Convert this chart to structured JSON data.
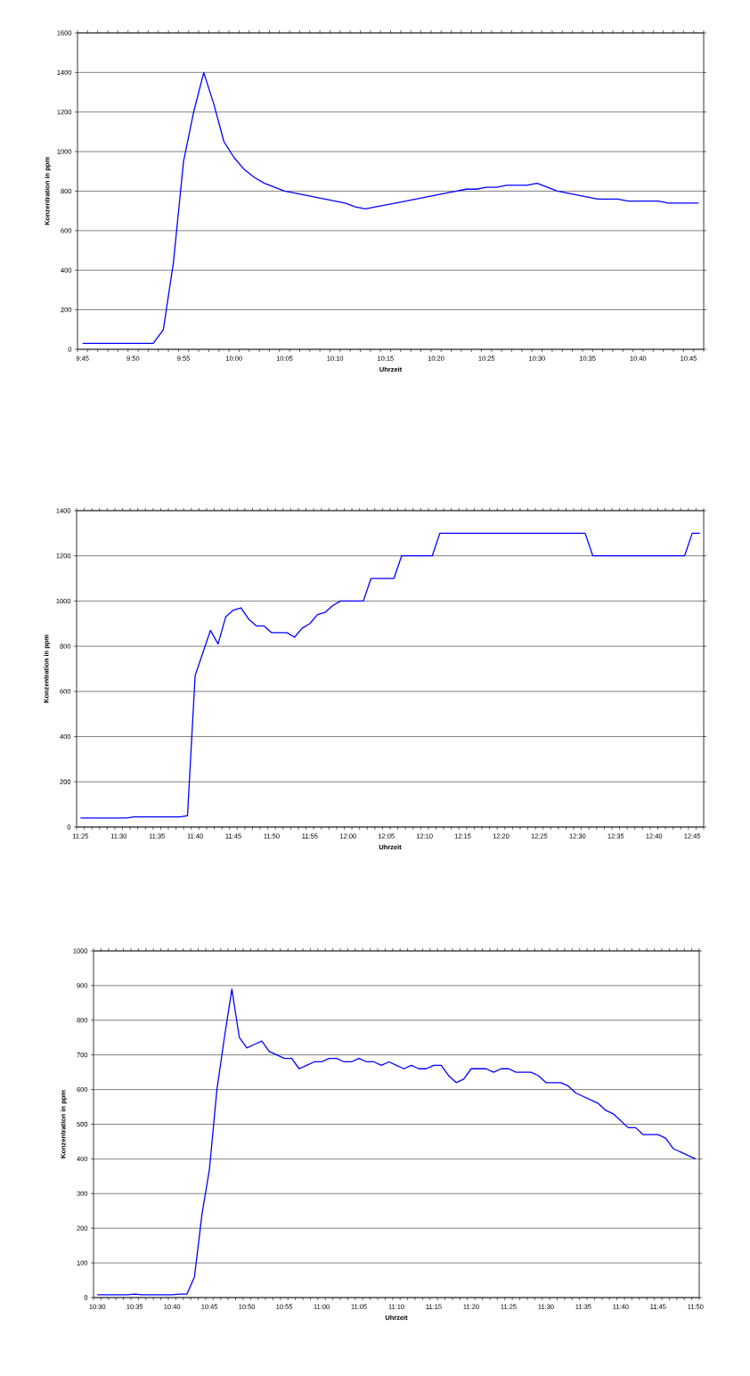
{
  "chart_data": [
    {
      "type": "line",
      "xlabel": "Uhrzeit",
      "ylabel": "Konzentration in ppm",
      "grid": "y",
      "ylim": [
        0,
        1600
      ],
      "yticks": [
        0,
        200,
        400,
        600,
        800,
        1000,
        1200,
        1400,
        1600
      ],
      "categories": [
        "9:45",
        null,
        null,
        null,
        null,
        "9:50",
        null,
        null,
        null,
        null,
        "9:55",
        null,
        null,
        null,
        null,
        "10:00",
        null,
        null,
        null,
        null,
        "10:05",
        null,
        null,
        null,
        null,
        "10:10",
        null,
        null,
        null,
        null,
        "10:15",
        null,
        null,
        null,
        null,
        "10:20",
        null,
        null,
        null,
        null,
        "10:25",
        null,
        null,
        null,
        null,
        "10:30",
        null,
        null,
        null,
        null,
        "10:35",
        null,
        null,
        null,
        null,
        "10:40",
        null,
        null,
        null,
        null,
        "10:45",
        null
      ],
      "series": [
        {
          "color": "#0000ff",
          "values": [
            30,
            30,
            30,
            30,
            30,
            30,
            30,
            30,
            100,
            440,
            950,
            1200,
            1400,
            1240,
            1050,
            970,
            910,
            870,
            840,
            820,
            800,
            790,
            780,
            770,
            760,
            750,
            740,
            720,
            710,
            720,
            730,
            740,
            750,
            760,
            770,
            780,
            790,
            800,
            810,
            810,
            820,
            820,
            830,
            830,
            830,
            840,
            820,
            800,
            790,
            780,
            770,
            760,
            760,
            760,
            750,
            750,
            750,
            750,
            740,
            740,
            740,
            740
          ]
        }
      ]
    },
    {
      "type": "line",
      "xlabel": "Uhrzeit",
      "ylabel": "Konzentration in ppm",
      "grid": "y",
      "ylim": [
        0,
        1400
      ],
      "yticks": [
        0,
        200,
        400,
        600,
        800,
        1000,
        1200,
        1400
      ],
      "categories": [
        "11:25",
        null,
        null,
        null,
        null,
        "11:30",
        null,
        null,
        null,
        null,
        "11:35",
        null,
        null,
        null,
        null,
        "11:40",
        null,
        null,
        null,
        null,
        "11:45",
        null,
        null,
        null,
        null,
        "11:50",
        null,
        null,
        null,
        null,
        "11:55",
        null,
        null,
        null,
        null,
        "12:00",
        null,
        null,
        null,
        null,
        "12:05",
        null,
        null,
        null,
        null,
        "12:10",
        null,
        null,
        null,
        null,
        "12:15",
        null,
        null,
        null,
        null,
        "12:20",
        null,
        null,
        null,
        null,
        "12:25",
        null,
        null,
        null,
        null,
        "12:30",
        null,
        null,
        null,
        null,
        "12:35",
        null,
        null,
        null,
        null,
        "12:40",
        null,
        null,
        null,
        null,
        "12:45",
        null
      ],
      "series": [
        {
          "color": "#0000ff",
          "values": [
            40,
            40,
            40,
            40,
            40,
            40,
            40,
            45,
            45,
            45,
            45,
            45,
            45,
            45,
            50,
            670,
            770,
            870,
            810,
            930,
            960,
            970,
            920,
            890,
            890,
            860,
            860,
            860,
            840,
            880,
            900,
            940,
            950,
            980,
            1000,
            1000,
            1000,
            1000,
            1100,
            1100,
            1100,
            1100,
            1200,
            1200,
            1200,
            1200,
            1200,
            1300,
            1300,
            1300,
            1300,
            1300,
            1300,
            1300,
            1300,
            1300,
            1300,
            1300,
            1300,
            1300,
            1300,
            1300,
            1300,
            1300,
            1300,
            1300,
            1300,
            1200,
            1200,
            1200,
            1200,
            1200,
            1200,
            1200,
            1200,
            1200,
            1200,
            1200,
            1200,
            1200,
            1300,
            1300
          ]
        }
      ]
    },
    {
      "type": "line",
      "xlabel": "Uhrzeit",
      "ylabel": "Konzentration in ppm",
      "grid": "y",
      "ylim": [
        0,
        1000
      ],
      "yticks": [
        0,
        100,
        200,
        300,
        400,
        500,
        600,
        700,
        800,
        900,
        1000
      ],
      "categories": [
        "10:30",
        null,
        null,
        null,
        null,
        "10:35",
        null,
        null,
        null,
        null,
        "10:40",
        null,
        null,
        null,
        null,
        "10:45",
        null,
        null,
        null,
        null,
        "10:50",
        null,
        null,
        null,
        null,
        "10:55",
        null,
        null,
        null,
        null,
        "11:00",
        null,
        null,
        null,
        null,
        "11:05",
        null,
        null,
        null,
        null,
        "11:10",
        null,
        null,
        null,
        null,
        "11:15",
        null,
        null,
        null,
        null,
        "11:20",
        null,
        null,
        null,
        null,
        "11:25",
        null,
        null,
        null,
        null,
        "11:30",
        null,
        null,
        null,
        null,
        "11:35",
        null,
        null,
        null,
        null,
        "11:40",
        null,
        null,
        null,
        null,
        "11:45",
        null,
        null,
        null,
        null,
        "11:50"
      ],
      "series": [
        {
          "color": "#0000ff",
          "values": [
            8,
            8,
            8,
            8,
            8,
            10,
            8,
            8,
            8,
            8,
            8,
            10,
            10,
            60,
            240,
            370,
            600,
            750,
            890,
            750,
            720,
            730,
            740,
            710,
            700,
            690,
            690,
            660,
            670,
            680,
            680,
            690,
            690,
            680,
            680,
            690,
            680,
            680,
            670,
            680,
            670,
            660,
            670,
            660,
            660,
            670,
            670,
            640,
            620,
            630,
            660,
            660,
            660,
            650,
            660,
            660,
            650,
            650,
            650,
            640,
            620,
            620,
            620,
            610,
            590,
            580,
            570,
            560,
            540,
            530,
            510,
            490,
            490,
            470,
            470,
            470,
            460,
            430,
            420,
            410,
            400
          ]
        }
      ]
    }
  ]
}
